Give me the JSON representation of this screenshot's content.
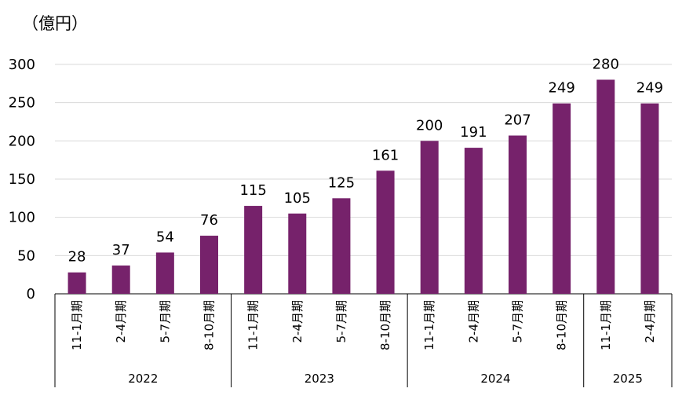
{
  "unit_label": "（億円）",
  "chart_data": {
    "type": "bar",
    "title": "",
    "xlabel": "",
    "ylabel": "（億円）",
    "ylim": [
      0,
      300
    ],
    "yticks": [
      0,
      50,
      100,
      150,
      200,
      250,
      300
    ],
    "grid": true,
    "bar_color": "#76226B",
    "categories": [
      "11-1月期",
      "2-4月期",
      "5-7月期",
      "8-10月期",
      "11-1月期",
      "2-4月期",
      "5-7月期",
      "8-10月期",
      "11-1月期",
      "2-4月期",
      "5-7月期",
      "8-10月期",
      "11-1月期",
      "2-4月期"
    ],
    "values": [
      28,
      37,
      54,
      76,
      115,
      105,
      125,
      161,
      200,
      191,
      207,
      249,
      280,
      249
    ],
    "groups": [
      {
        "label": "2022",
        "count": 4
      },
      {
        "label": "2023",
        "count": 4
      },
      {
        "label": "2024",
        "count": 4
      },
      {
        "label": "2025",
        "count": 2
      }
    ]
  }
}
